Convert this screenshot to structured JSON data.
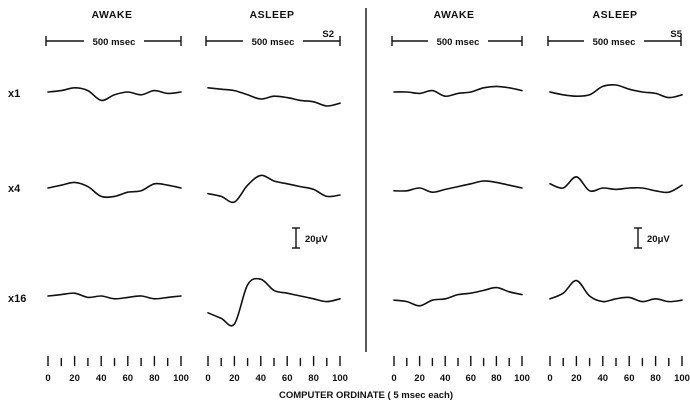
{
  "chart_data": {
    "type": "line",
    "subjects": [
      "S2",
      "S5"
    ],
    "panels": [
      "AWAKE",
      "ASLEEP",
      "AWAKE",
      "ASLEEP"
    ],
    "time_bar_label": "500 msec",
    "rows": [
      "x1",
      "x4",
      "x16"
    ],
    "scale_bar_label": "20μV",
    "xlabel": "COMPUTER ORDINATE ( 5 msec each)",
    "x_ticks": [
      "0",
      "20",
      "40",
      "60",
      "80",
      "100"
    ],
    "xlim": [
      0,
      100
    ],
    "x": [
      0,
      10,
      20,
      30,
      40,
      50,
      60,
      70,
      80,
      90,
      100
    ],
    "series": [
      {
        "values": [
          0,
          1,
          3,
          1,
          -6,
          -2,
          0,
          -2,
          1,
          -1,
          0
        ]
      },
      {
        "values": [
          3,
          2,
          1,
          -2,
          -5,
          -3,
          -4,
          -6,
          -7,
          -10,
          -8
        ]
      },
      {
        "values": [
          0,
          0,
          -1,
          1,
          -3,
          -1,
          0,
          3,
          4,
          3,
          1
        ]
      },
      {
        "values": [
          0,
          -2,
          -3,
          -2,
          4,
          5,
          2,
          0,
          -1,
          -4,
          -2
        ]
      },
      {
        "values": [
          0,
          2,
          4,
          1,
          -6,
          -6,
          -3,
          -2,
          3,
          2,
          0
        ]
      },
      {
        "values": [
          -4,
          -6,
          -10,
          2,
          9,
          5,
          3,
          1,
          -1,
          -6,
          -5
        ]
      },
      {
        "values": [
          -2,
          -2,
          0,
          -3,
          -1,
          1,
          3,
          5,
          4,
          2,
          0
        ]
      },
      {
        "values": [
          3,
          0,
          8,
          -2,
          0,
          -1,
          0,
          0,
          -2,
          -3,
          2
        ]
      },
      {
        "values": [
          0,
          1,
          2,
          -1,
          0,
          -2,
          -1,
          0,
          -2,
          -1,
          0
        ]
      },
      {
        "values": [
          -12,
          -16,
          -20,
          8,
          12,
          4,
          2,
          0,
          -2,
          -4,
          -2
        ]
      },
      {
        "values": [
          -3,
          -4,
          -7,
          -3,
          -2,
          1,
          2,
          4,
          6,
          3,
          1
        ]
      },
      {
        "values": [
          -2,
          2,
          11,
          0,
          -4,
          -2,
          -1,
          -4,
          -2,
          -4,
          -3
        ]
      }
    ]
  }
}
